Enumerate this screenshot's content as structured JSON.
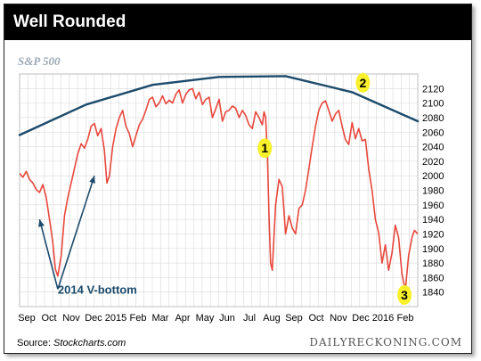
{
  "header": {
    "title": "Well Rounded"
  },
  "footer": {
    "source_label": "Source:",
    "source_name": "Stockcharts.com",
    "credit": "DAILYRECKONING.COM"
  },
  "colors": {
    "series": "#e8473c",
    "trendline": "#1b4a6b",
    "marker": "#f7f02a",
    "grid": "#d9d9d9",
    "index_label": "#9aa7b5"
  },
  "chart_data": {
    "type": "line",
    "index_label": "S&P 500",
    "ylim": [
      1820,
      2140
    ],
    "y_ticks": [
      1840,
      1860,
      1880,
      1900,
      1920,
      1940,
      1960,
      1980,
      2000,
      2020,
      2040,
      2060,
      2080,
      2100,
      2120
    ],
    "x_tick_labels": [
      "Sep",
      "Oct",
      "Nov",
      "Dec",
      "2015",
      "Feb",
      "Mar",
      "Apr",
      "May",
      "Jun",
      "Jul",
      "Aug",
      "Sep",
      "Oct",
      "Nov",
      "Dec",
      "2016",
      "Feb"
    ],
    "series": [
      {
        "values": [
          [
            0,
            2003
          ],
          [
            4,
            1998
          ],
          [
            8,
            2006
          ],
          [
            12,
            1995
          ],
          [
            16,
            1990
          ],
          [
            20,
            1981
          ],
          [
            24,
            1977
          ],
          [
            28,
            1988
          ],
          [
            32,
            1970
          ],
          [
            36,
            1940
          ],
          [
            40,
            1908
          ],
          [
            43,
            1872
          ],
          [
            46,
            1862
          ],
          [
            50,
            1890
          ],
          [
            54,
            1945
          ],
          [
            58,
            1970
          ],
          [
            62,
            1990
          ],
          [
            66,
            2010
          ],
          [
            70,
            2030
          ],
          [
            74,
            2044
          ],
          [
            78,
            2038
          ],
          [
            82,
            2050
          ],
          [
            86,
            2068
          ],
          [
            90,
            2072
          ],
          [
            94,
            2055
          ],
          [
            98,
            2065
          ],
          [
            102,
            2035
          ],
          [
            105,
            1990
          ],
          [
            108,
            2000
          ],
          [
            112,
            2040
          ],
          [
            116,
            2065
          ],
          [
            120,
            2080
          ],
          [
            124,
            2090
          ],
          [
            128,
            2068
          ],
          [
            132,
            2058
          ],
          [
            136,
            2040
          ],
          [
            140,
            2055
          ],
          [
            144,
            2070
          ],
          [
            148,
            2078
          ],
          [
            152,
            2090
          ],
          [
            156,
            2105
          ],
          [
            160,
            2108
          ],
          [
            164,
            2095
          ],
          [
            168,
            2100
          ],
          [
            172,
            2110
          ],
          [
            176,
            2099
          ],
          [
            180,
            2104
          ],
          [
            184,
            2100
          ],
          [
            188,
            2112
          ],
          [
            192,
            2118
          ],
          [
            196,
            2100
          ],
          [
            200,
            2112
          ],
          [
            204,
            2118
          ],
          [
            208,
            2120
          ],
          [
            212,
            2106
          ],
          [
            216,
            2115
          ],
          [
            220,
            2098
          ],
          [
            224,
            2105
          ],
          [
            228,
            2108
          ],
          [
            232,
            2080
          ],
          [
            236,
            2092
          ],
          [
            240,
            2105
          ],
          [
            244,
            2075
          ],
          [
            248,
            2088
          ],
          [
            252,
            2090
          ],
          [
            256,
            2096
          ],
          [
            260,
            2093
          ],
          [
            264,
            2080
          ],
          [
            268,
            2090
          ],
          [
            272,
            2083
          ],
          [
            276,
            2070
          ],
          [
            280,
            2065
          ],
          [
            284,
            2088
          ],
          [
            288,
            2080
          ],
          [
            292,
            2070
          ],
          [
            294,
            2088
          ],
          [
            296,
            2080
          ],
          [
            298,
            2034
          ],
          [
            300,
            1945
          ],
          [
            302,
            1880
          ],
          [
            304,
            1870
          ],
          [
            308,
            1960
          ],
          [
            312,
            1995
          ],
          [
            316,
            1985
          ],
          [
            320,
            1920
          ],
          [
            324,
            1945
          ],
          [
            328,
            1928
          ],
          [
            332,
            1920
          ],
          [
            336,
            1955
          ],
          [
            340,
            1960
          ],
          [
            344,
            1980
          ],
          [
            348,
            2010
          ],
          [
            352,
            2040
          ],
          [
            356,
            2068
          ],
          [
            360,
            2090
          ],
          [
            364,
            2100
          ],
          [
            368,
            2103
          ],
          [
            372,
            2090
          ],
          [
            376,
            2075
          ],
          [
            380,
            2085
          ],
          [
            384,
            2090
          ],
          [
            388,
            2068
          ],
          [
            392,
            2050
          ],
          [
            396,
            2043
          ],
          [
            400,
            2073
          ],
          [
            404,
            2051
          ],
          [
            408,
            2065
          ],
          [
            412,
            2048
          ],
          [
            416,
            2050
          ],
          [
            420,
            2010
          ],
          [
            424,
            1980
          ],
          [
            428,
            1940
          ],
          [
            432,
            1922
          ],
          [
            436,
            1880
          ],
          [
            440,
            1905
          ],
          [
            444,
            1870
          ],
          [
            448,
            1894
          ],
          [
            452,
            1932
          ],
          [
            456,
            1915
          ],
          [
            460,
            1865
          ],
          [
            464,
            1842
          ],
          [
            468,
            1890
          ],
          [
            472,
            1915
          ],
          [
            475,
            1925
          ],
          [
            479,
            1920
          ]
        ]
      }
    ],
    "trendline": [
      [
        0,
        2056
      ],
      [
        80,
        2098
      ],
      [
        160,
        2125
      ],
      [
        240,
        2136
      ],
      [
        320,
        2137
      ],
      [
        400,
        2115
      ],
      [
        479,
        2075
      ]
    ],
    "annotations": [
      {
        "kind": "text",
        "text": "2014 V-bottom",
        "x": 46,
        "y": 1838
      },
      {
        "kind": "marker",
        "text": "1",
        "x": 295,
        "y": 2038
      },
      {
        "kind": "marker",
        "text": "2",
        "x": 413,
        "y": 2128
      },
      {
        "kind": "marker",
        "text": "3",
        "x": 463,
        "y": 1836
      }
    ],
    "arrows": [
      {
        "from": [
          46,
          1844
        ],
        "to": [
          24,
          1940
        ]
      },
      {
        "from": [
          46,
          1844
        ],
        "to": [
          90,
          2000
        ]
      }
    ]
  }
}
